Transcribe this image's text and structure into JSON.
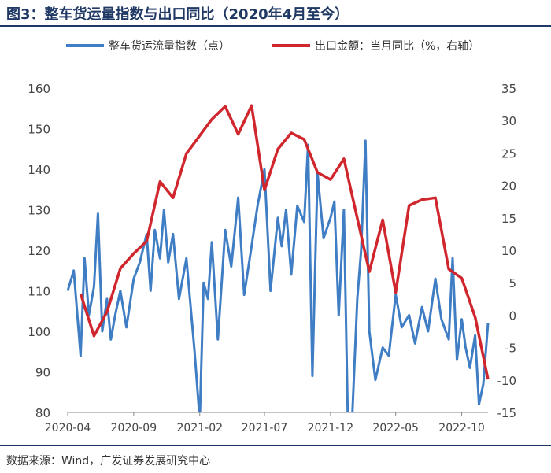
{
  "title": "图3：整车货运量指数与出口同比（2020年4月至今）",
  "source": "数据来源：Wind，广发证券发展研究中心",
  "colors": {
    "series_left": "#3f7dc4",
    "series_right": "#d0262d",
    "title": "#1f3864",
    "tick": "#444444"
  },
  "chart_data": {
    "type": "line",
    "title": "",
    "legend_position": "top",
    "grid": false,
    "y_left": {
      "min": 80,
      "max": 160,
      "ticks": [
        80,
        90,
        100,
        110,
        120,
        130,
        140,
        150,
        160
      ]
    },
    "y_right": {
      "min": -15,
      "max": 35,
      "ticks": [
        -15,
        -10,
        -5,
        0,
        5,
        10,
        15,
        20,
        25,
        30,
        35
      ]
    },
    "x_ticks": [
      "2020-04",
      "2020-09",
      "2021-02",
      "2021-07",
      "2021-12",
      "2022-05",
      "2022-10"
    ],
    "x_range": [
      "2020-04",
      "2022-12"
    ],
    "series": [
      {
        "name": "整车货运流量指数（点）",
        "axis": "left",
        "x": [
          "2020-04",
          "2020-04-15",
          "2020-05",
          "2020-05-10",
          "2020-05-20",
          "2020-06",
          "2020-06-10",
          "2020-06-20",
          "2020-07",
          "2020-07-10",
          "2020-07-20",
          "2020-08",
          "2020-08-15",
          "2020-09",
          "2020-09-15",
          "2020-10",
          "2020-10-10",
          "2020-10-20",
          "2020-11",
          "2020-11-10",
          "2020-11-20",
          "2020-12",
          "2020-12-15",
          "2021-01",
          "2021-01-20",
          "2021-02",
          "2021-02-10",
          "2021-02-20",
          "2021-03",
          "2021-03-15",
          "2021-04",
          "2021-04-15",
          "2021-05",
          "2021-05-15",
          "2021-06",
          "2021-06-15",
          "2021-07",
          "2021-07-15",
          "2021-08",
          "2021-08-10",
          "2021-08-20",
          "2021-09",
          "2021-09-15",
          "2021-10",
          "2021-10-10",
          "2021-10-20",
          "2021-11",
          "2021-11-15",
          "2021-12",
          "2021-12-10",
          "2021-12-20",
          "2022-01",
          "2022-01-10",
          "2022-01-20",
          "2022-02",
          "2022-02-10",
          "2022-02-20",
          "2022-03",
          "2022-03-15",
          "2022-04",
          "2022-04-15",
          "2022-05",
          "2022-05-15",
          "2022-06",
          "2022-06-15",
          "2022-07",
          "2022-07-15",
          "2022-08",
          "2022-08-15",
          "2022-09",
          "2022-09-10",
          "2022-09-20",
          "2022-10",
          "2022-10-10",
          "2022-10-20",
          "2022-11",
          "2022-11-10",
          "2022-11-20",
          "2022-12"
        ],
        "values": [
          110,
          115,
          94,
          118,
          104,
          111,
          129,
          100,
          108,
          98,
          104,
          110,
          101,
          113,
          117,
          124,
          110,
          125,
          118,
          130,
          117,
          124,
          108,
          118,
          95,
          78,
          112,
          108,
          122,
          98,
          125,
          116,
          133,
          109,
          121,
          131,
          140,
          110,
          128,
          121,
          130,
          114,
          131,
          127,
          146,
          89,
          139,
          123,
          128,
          132,
          104,
          130,
          79,
          78,
          108,
          120,
          147,
          100,
          88,
          96,
          94,
          109,
          101,
          104,
          97,
          106,
          100,
          113,
          103,
          98,
          118,
          93,
          103,
          96,
          91,
          99,
          82,
          87,
          102
        ]
      },
      {
        "name": "出口金额：当月同比（%，右轴）",
        "axis": "right",
        "x": [
          "2020-05",
          "2020-06",
          "2020-07",
          "2020-08",
          "2020-09",
          "2020-10",
          "2020-11",
          "2020-12",
          "2021-01",
          "2021-03",
          "2021-04",
          "2021-05",
          "2021-06",
          "2021-07",
          "2021-08",
          "2021-09",
          "2021-10",
          "2021-11",
          "2021-12",
          "2022-01",
          "2022-03",
          "2022-04",
          "2022-05",
          "2022-06",
          "2022-07",
          "2022-08",
          "2022-09",
          "2022-10",
          "2022-11",
          "2022-12"
        ],
        "values": [
          3.3,
          -3.2,
          0.5,
          7.2,
          9.5,
          11.4,
          20.6,
          18.1,
          24.9,
          30.2,
          32.2,
          27.9,
          32.3,
          19.3,
          25.6,
          28.1,
          27.1,
          22.0,
          20.9,
          24.1,
          6.7,
          14.7,
          3.5,
          16.9,
          17.8,
          18.1,
          7.1,
          5.7,
          -0.3,
          -9.9
        ]
      }
    ]
  }
}
